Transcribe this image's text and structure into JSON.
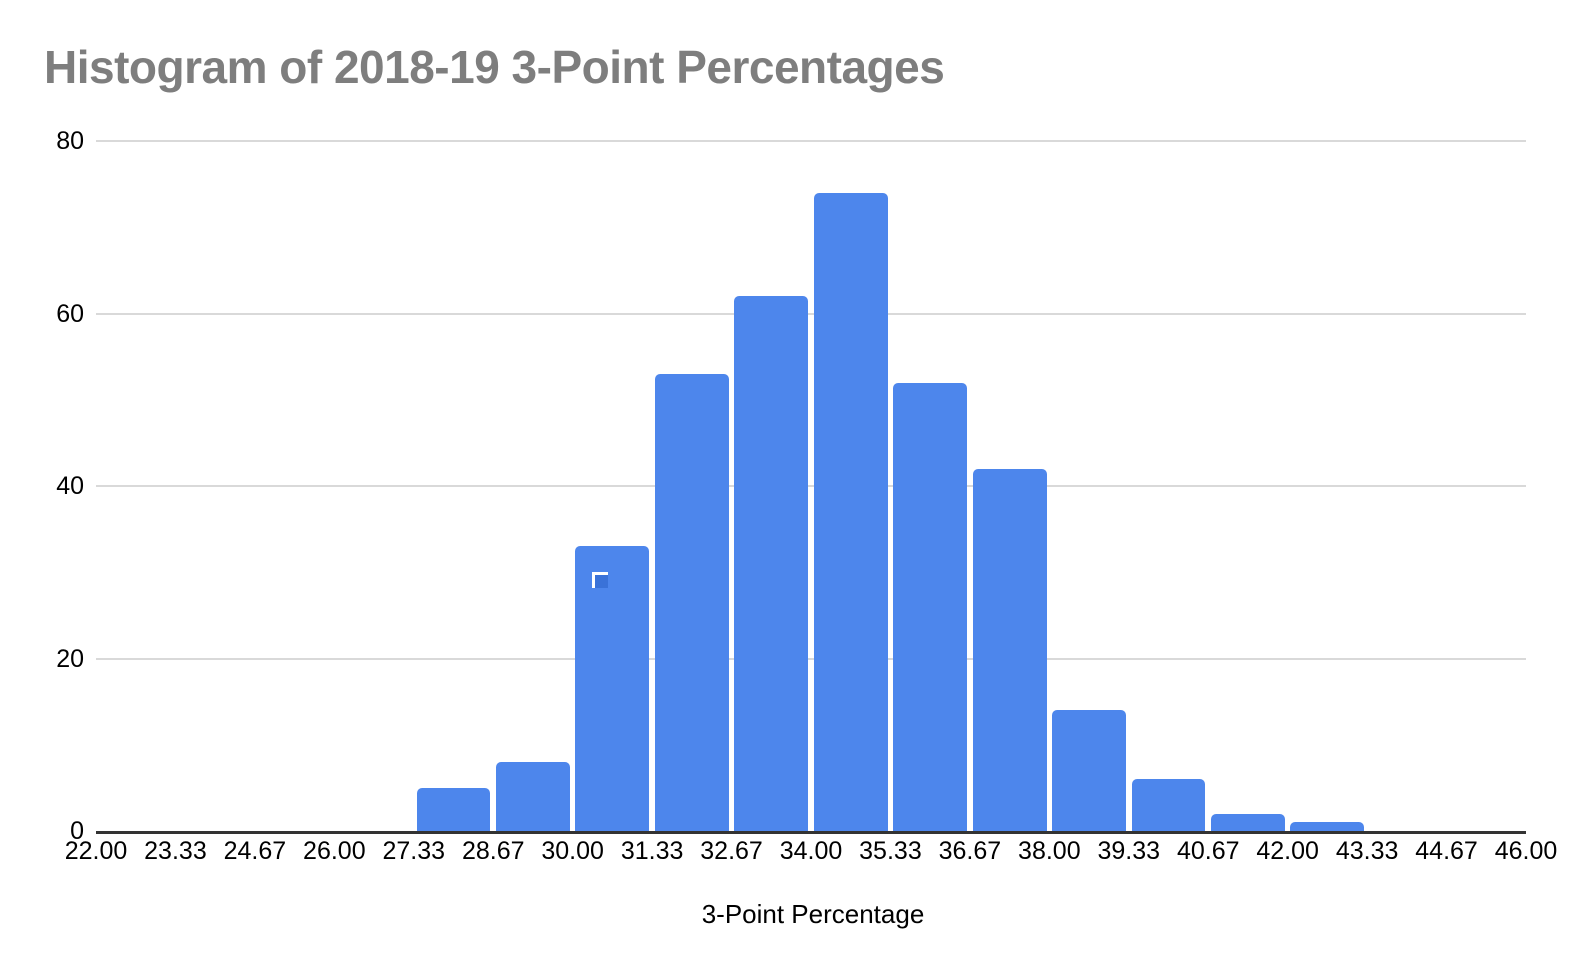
{
  "chart_data": {
    "type": "bar",
    "subtype": "histogram",
    "title": "Histogram of 2018-19 3-Point Percentages",
    "xlabel": "3-Point Percentage",
    "ylabel": "",
    "bin_edges": [
      22.0,
      23.33,
      24.67,
      26.0,
      27.33,
      28.67,
      30.0,
      31.33,
      32.67,
      34.0,
      35.33,
      36.67,
      38.0,
      39.33,
      40.67,
      42.0,
      43.33,
      44.67,
      46.0
    ],
    "counts": [
      0,
      0,
      0,
      0,
      5,
      8,
      33,
      53,
      62,
      74,
      52,
      42,
      14,
      6,
      2,
      1,
      0,
      0
    ],
    "x_tick_labels": [
      "22.00",
      "23.33",
      "24.67",
      "26.00",
      "27.33",
      "28.67",
      "30.00",
      "31.33",
      "32.67",
      "34.00",
      "35.33",
      "36.67",
      "38.00",
      "39.33",
      "40.67",
      "42.00",
      "43.33",
      "44.67",
      "46.00"
    ],
    "y_tick_values": [
      0,
      20,
      40,
      60,
      80
    ],
    "y_tick_labels": [
      "0",
      "20",
      "40",
      "60",
      "80"
    ],
    "ylim": [
      0,
      80
    ],
    "xlim": [
      22.0,
      46.0
    ],
    "grid": "horizontal-only",
    "legend": "none",
    "colors": {
      "bar": "#4d86ec",
      "selection_marker_fill": "#3a72d8",
      "selection_marker_border": "#ffffff",
      "gridline": "#d9d9d9",
      "axis_line": "#333333",
      "title_text": "#7e7e7e",
      "tick_text": "#000000",
      "background": "#ffffff"
    },
    "selection_marker": {
      "bin_start_label": "30.00",
      "description": "small dark-blue square with white top/left border shown near the upper-left inside the 30.00 bar"
    }
  }
}
